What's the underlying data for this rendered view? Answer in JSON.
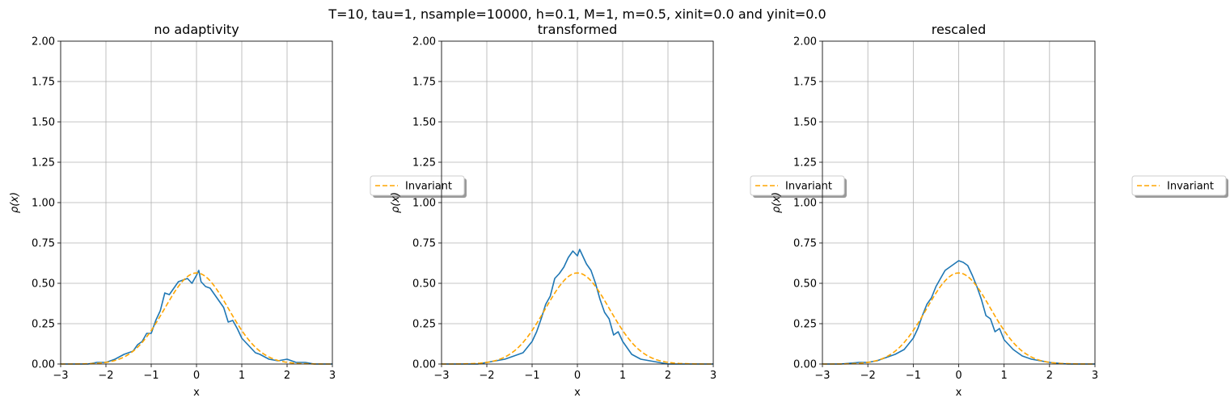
{
  "figure": {
    "suptitle": "T=10, tau=1, nsample=10000, h=0.1, M=1, m=0.5, xinit=0.0 and yinit=0.0"
  },
  "colors": {
    "empirical": "#1f77b4",
    "invariant": "#ffa500",
    "grid": "#b0b0b0"
  },
  "chart_data": [
    {
      "type": "line",
      "title": "no adaptivity",
      "xlabel": "x",
      "ylabel": "ρ(x)",
      "xlim": [
        -3,
        3
      ],
      "ylim": [
        0,
        2
      ],
      "xticks": [
        "−3",
        "−2",
        "−1",
        "0",
        "1",
        "2",
        "3"
      ],
      "yticks": [
        "0.00",
        "0.25",
        "0.50",
        "0.75",
        "1.00",
        "1.25",
        "1.50",
        "1.75",
        "2.00"
      ],
      "grid": true,
      "legend": {
        "placement": "right-outside",
        "entries": [
          "Invariant"
        ]
      },
      "series": [
        {
          "x": [
            -3.0,
            -2.8,
            -2.6,
            -2.4,
            -2.2,
            -2.0,
            -1.8,
            -1.6,
            -1.4,
            -1.3,
            -1.2,
            -1.1,
            -1.0,
            -0.9,
            -0.8,
            -0.7,
            -0.6,
            -0.5,
            -0.4,
            -0.3,
            -0.2,
            -0.1,
            0.0,
            0.05,
            0.1,
            0.2,
            0.3,
            0.4,
            0.5,
            0.6,
            0.7,
            0.8,
            0.9,
            1.0,
            1.1,
            1.2,
            1.3,
            1.4,
            1.6,
            1.8,
            2.0,
            2.2,
            2.4,
            2.6,
            2.8,
            3.0
          ],
          "y": [
            0.0,
            0.0,
            0.0,
            0.0,
            0.01,
            0.01,
            0.03,
            0.06,
            0.08,
            0.12,
            0.14,
            0.19,
            0.19,
            0.27,
            0.33,
            0.44,
            0.43,
            0.47,
            0.51,
            0.52,
            0.53,
            0.5,
            0.55,
            0.58,
            0.51,
            0.48,
            0.47,
            0.43,
            0.39,
            0.35,
            0.26,
            0.27,
            0.22,
            0.16,
            0.13,
            0.1,
            0.07,
            0.06,
            0.03,
            0.02,
            0.03,
            0.01,
            0.01,
            0.0,
            0.0,
            0.0
          ]
        },
        {
          "name": "Invariant",
          "function": "gaussian",
          "sigma": 0.7071,
          "x_range": [
            -3,
            3
          ]
        }
      ]
    },
    {
      "type": "line",
      "title": "transformed",
      "xlabel": "x",
      "ylabel": "ρ(x)",
      "xlim": [
        -3,
        3
      ],
      "ylim": [
        0,
        2
      ],
      "xticks": [
        "−3",
        "−2",
        "−1",
        "0",
        "1",
        "2",
        "3"
      ],
      "yticks": [
        "0.00",
        "0.25",
        "0.50",
        "0.75",
        "1.00",
        "1.25",
        "1.50",
        "1.75",
        "2.00"
      ],
      "grid": true,
      "legend": {
        "placement": "right-outside",
        "entries": [
          "Invariant"
        ]
      },
      "series": [
        {
          "x": [
            -3.0,
            -2.6,
            -2.2,
            -2.0,
            -1.8,
            -1.6,
            -1.4,
            -1.2,
            -1.0,
            -0.9,
            -0.8,
            -0.7,
            -0.6,
            -0.5,
            -0.4,
            -0.3,
            -0.2,
            -0.1,
            0.0,
            0.05,
            0.1,
            0.2,
            0.3,
            0.4,
            0.5,
            0.6,
            0.7,
            0.8,
            0.9,
            1.0,
            1.1,
            1.2,
            1.4,
            1.6,
            1.8,
            2.0,
            2.4,
            3.0
          ],
          "y": [
            0.0,
            0.0,
            0.0,
            0.01,
            0.02,
            0.03,
            0.05,
            0.07,
            0.14,
            0.2,
            0.28,
            0.37,
            0.42,
            0.53,
            0.56,
            0.6,
            0.66,
            0.7,
            0.67,
            0.71,
            0.68,
            0.62,
            0.58,
            0.5,
            0.4,
            0.32,
            0.28,
            0.18,
            0.2,
            0.14,
            0.1,
            0.06,
            0.03,
            0.02,
            0.01,
            0.0,
            0.0,
            0.0
          ]
        },
        {
          "name": "Invariant",
          "function": "gaussian",
          "sigma": 0.7071,
          "x_range": [
            -3,
            3
          ]
        }
      ]
    },
    {
      "type": "line",
      "title": "rescaled",
      "xlabel": "x",
      "ylabel": "ρ(x)",
      "xlim": [
        -3,
        3
      ],
      "ylim": [
        0,
        2
      ],
      "xticks": [
        "−3",
        "−2",
        "−1",
        "0",
        "1",
        "2",
        "3"
      ],
      "yticks": [
        "0.00",
        "0.25",
        "0.50",
        "0.75",
        "1.00",
        "1.25",
        "1.50",
        "1.75",
        "2.00"
      ],
      "grid": true,
      "legend": {
        "placement": "right-outside",
        "entries": [
          "Invariant"
        ]
      },
      "series": [
        {
          "x": [
            -3.0,
            -2.6,
            -2.2,
            -2.0,
            -1.8,
            -1.6,
            -1.4,
            -1.2,
            -1.0,
            -0.9,
            -0.8,
            -0.7,
            -0.6,
            -0.5,
            -0.4,
            -0.3,
            -0.2,
            -0.1,
            0.0,
            0.1,
            0.2,
            0.3,
            0.4,
            0.5,
            0.6,
            0.7,
            0.8,
            0.9,
            1.0,
            1.1,
            1.2,
            1.4,
            1.6,
            1.8,
            2.0,
            2.4,
            3.0
          ],
          "y": [
            0.0,
            0.0,
            0.01,
            0.01,
            0.02,
            0.04,
            0.06,
            0.09,
            0.16,
            0.22,
            0.3,
            0.37,
            0.41,
            0.48,
            0.53,
            0.58,
            0.6,
            0.62,
            0.64,
            0.63,
            0.61,
            0.55,
            0.48,
            0.4,
            0.3,
            0.28,
            0.2,
            0.22,
            0.15,
            0.12,
            0.09,
            0.05,
            0.03,
            0.02,
            0.01,
            0.0,
            0.0
          ]
        },
        {
          "name": "Invariant",
          "function": "gaussian",
          "sigma": 0.7071,
          "x_range": [
            -3,
            3
          ]
        }
      ]
    }
  ]
}
